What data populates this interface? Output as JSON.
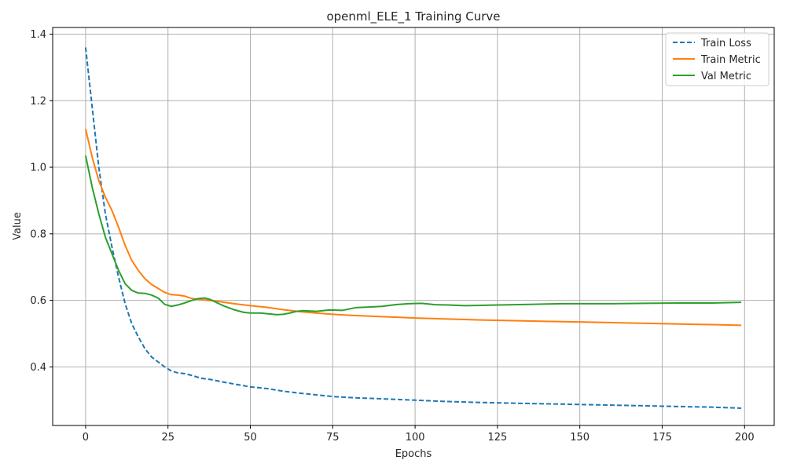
{
  "chart_data": {
    "type": "line",
    "title": "openml_ELE_1 Training Curve",
    "xlabel": "Epochs",
    "ylabel": "Value",
    "xlim": [
      -10,
      209
    ],
    "ylim": [
      0.224,
      1.42
    ],
    "xticks": [
      0,
      25,
      50,
      75,
      100,
      125,
      150,
      175,
      200
    ],
    "yticks": [
      0.4,
      0.6,
      0.8,
      1.0,
      1.2,
      1.4
    ],
    "ytick_labels": [
      "0.4",
      "0.6",
      "0.8",
      "1.0",
      "1.2",
      "1.4"
    ],
    "grid": true,
    "legend_position": "top-right",
    "colors": {
      "train_loss": "#1f77b4",
      "train_metric": "#ff7f0e",
      "val_metric": "#2ca02c"
    },
    "series": [
      {
        "name": "Train Loss",
        "style": "dashed",
        "color": "#1f77b4",
        "points": [
          [
            0,
            1.36
          ],
          [
            2,
            1.18
          ],
          [
            4,
            1.0
          ],
          [
            6,
            0.86
          ],
          [
            8,
            0.76
          ],
          [
            10,
            0.67
          ],
          [
            12,
            0.59
          ],
          [
            14,
            0.53
          ],
          [
            16,
            0.49
          ],
          [
            18,
            0.455
          ],
          [
            20,
            0.43
          ],
          [
            22,
            0.415
          ],
          [
            24,
            0.4
          ],
          [
            26,
            0.388
          ],
          [
            28,
            0.382
          ],
          [
            30,
            0.38
          ],
          [
            32,
            0.375
          ],
          [
            35,
            0.366
          ],
          [
            38,
            0.362
          ],
          [
            42,
            0.354
          ],
          [
            46,
            0.347
          ],
          [
            50,
            0.34
          ],
          [
            55,
            0.335
          ],
          [
            60,
            0.327
          ],
          [
            65,
            0.321
          ],
          [
            70,
            0.316
          ],
          [
            75,
            0.311
          ],
          [
            80,
            0.308
          ],
          [
            85,
            0.306
          ],
          [
            90,
            0.304
          ],
          [
            95,
            0.302
          ],
          [
            100,
            0.3
          ],
          [
            110,
            0.296
          ],
          [
            120,
            0.293
          ],
          [
            130,
            0.291
          ],
          [
            140,
            0.289
          ],
          [
            150,
            0.287
          ],
          [
            160,
            0.285
          ],
          [
            170,
            0.283
          ],
          [
            180,
            0.281
          ],
          [
            190,
            0.279
          ],
          [
            199,
            0.276
          ]
        ]
      },
      {
        "name": "Train Metric",
        "style": "solid",
        "color": "#ff7f0e",
        "points": [
          [
            0,
            1.115
          ],
          [
            2,
            1.03
          ],
          [
            4,
            0.96
          ],
          [
            6,
            0.91
          ],
          [
            8,
            0.87
          ],
          [
            10,
            0.82
          ],
          [
            12,
            0.765
          ],
          [
            14,
            0.72
          ],
          [
            16,
            0.69
          ],
          [
            18,
            0.665
          ],
          [
            20,
            0.648
          ],
          [
            22,
            0.636
          ],
          [
            24,
            0.624
          ],
          [
            26,
            0.617
          ],
          [
            28,
            0.616
          ],
          [
            30,
            0.613
          ],
          [
            32,
            0.606
          ],
          [
            35,
            0.602
          ],
          [
            40,
            0.597
          ],
          [
            45,
            0.59
          ],
          [
            50,
            0.584
          ],
          [
            55,
            0.579
          ],
          [
            60,
            0.572
          ],
          [
            65,
            0.566
          ],
          [
            70,
            0.562
          ],
          [
            75,
            0.558
          ],
          [
            80,
            0.555
          ],
          [
            90,
            0.551
          ],
          [
            100,
            0.547
          ],
          [
            110,
            0.544
          ],
          [
            120,
            0.541
          ],
          [
            130,
            0.539
          ],
          [
            140,
            0.537
          ],
          [
            150,
            0.535
          ],
          [
            160,
            0.533
          ],
          [
            170,
            0.531
          ],
          [
            180,
            0.529
          ],
          [
            190,
            0.527
          ],
          [
            199,
            0.525
          ]
        ]
      },
      {
        "name": "Val Metric",
        "style": "solid",
        "color": "#2ca02c",
        "points": [
          [
            0,
            1.035
          ],
          [
            2,
            0.94
          ],
          [
            4,
            0.86
          ],
          [
            6,
            0.79
          ],
          [
            8,
            0.74
          ],
          [
            10,
            0.69
          ],
          [
            12,
            0.65
          ],
          [
            14,
            0.63
          ],
          [
            16,
            0.622
          ],
          [
            18,
            0.621
          ],
          [
            20,
            0.616
          ],
          [
            22,
            0.607
          ],
          [
            24,
            0.588
          ],
          [
            26,
            0.582
          ],
          [
            28,
            0.586
          ],
          [
            30,
            0.592
          ],
          [
            32,
            0.599
          ],
          [
            34,
            0.605
          ],
          [
            36,
            0.607
          ],
          [
            38,
            0.602
          ],
          [
            40,
            0.592
          ],
          [
            42,
            0.583
          ],
          [
            45,
            0.572
          ],
          [
            48,
            0.564
          ],
          [
            50,
            0.562
          ],
          [
            53,
            0.562
          ],
          [
            56,
            0.559
          ],
          [
            58,
            0.557
          ],
          [
            60,
            0.558
          ],
          [
            62,
            0.562
          ],
          [
            64,
            0.567
          ],
          [
            66,
            0.569
          ],
          [
            70,
            0.567
          ],
          [
            74,
            0.571
          ],
          [
            78,
            0.57
          ],
          [
            82,
            0.578
          ],
          [
            86,
            0.58
          ],
          [
            90,
            0.582
          ],
          [
            94,
            0.587
          ],
          [
            98,
            0.59
          ],
          [
            102,
            0.591
          ],
          [
            106,
            0.587
          ],
          [
            110,
            0.586
          ],
          [
            115,
            0.584
          ],
          [
            120,
            0.585
          ],
          [
            125,
            0.586
          ],
          [
            130,
            0.587
          ],
          [
            135,
            0.588
          ],
          [
            140,
            0.589
          ],
          [
            145,
            0.59
          ],
          [
            150,
            0.59
          ],
          [
            155,
            0.59
          ],
          [
            160,
            0.59
          ],
          [
            170,
            0.591
          ],
          [
            180,
            0.592
          ],
          [
            190,
            0.592
          ],
          [
            199,
            0.594
          ]
        ]
      }
    ]
  }
}
